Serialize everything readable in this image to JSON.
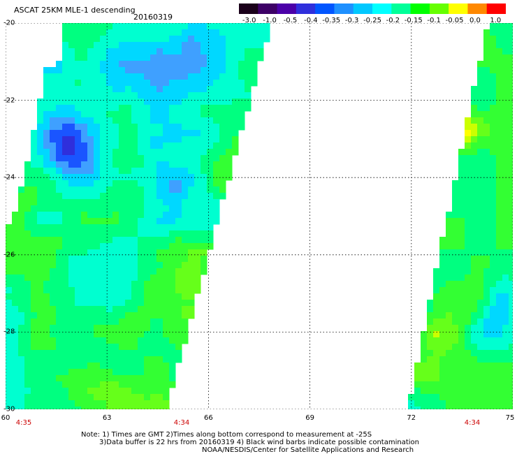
{
  "header": {
    "title": "ASCAT 25KM MLE-1 descending",
    "date": "20160319"
  },
  "colorbar": {
    "labels": [
      "-3.0",
      "-1.0",
      "-0.5",
      "-0.4",
      "-0.35",
      "-0.3",
      "-0.25",
      "-0.2",
      "-0.15",
      "-0.1",
      "-0.05",
      "0.0",
      "1.0"
    ],
    "colors": [
      "#1a001a",
      "#3d0066",
      "#4b00a8",
      "#2f2fdc",
      "#0055ff",
      "#1e90ff",
      "#00c8ff",
      "#00ffff",
      "#00ff99",
      "#00ff00",
      "#66ff00",
      "#ffff00",
      "#ff8800",
      "#ff0000"
    ]
  },
  "map": {
    "lat_labels": [
      "-20",
      "-22",
      "-24",
      "-26",
      "-28",
      "-30"
    ],
    "lon_labels": [
      "60",
      "63",
      "66",
      "69",
      "72",
      "75"
    ],
    "lat_range": [
      -30,
      -20
    ],
    "lon_range": [
      60,
      75
    ],
    "swath_left_time": "4:35",
    "swath_mid_time": "4:34",
    "swath_right_time": "4:34",
    "grid": true
  },
  "notes": {
    "line1": "Note: 1) Times are GMT 2)Times along bottom correspond to measurement at -25S",
    "line2": "3)Data buffer is 22 hrs from 20160319 4) Black wind barbs indicate possible contamination",
    "line3": "NOAA/NESDIS/Center for Satellite Applications and Research"
  }
}
